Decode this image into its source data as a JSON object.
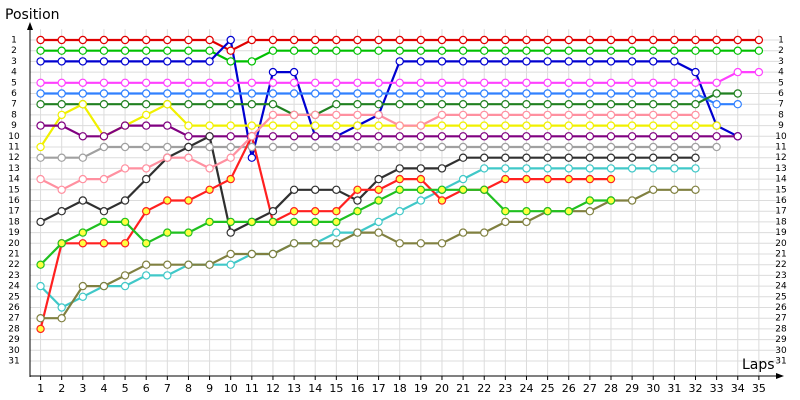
{
  "chart_data": {
    "type": "line",
    "y_label": "Position",
    "x_label": "Laps",
    "x": [
      1,
      2,
      3,
      4,
      5,
      6,
      7,
      8,
      9,
      10,
      11,
      12,
      13,
      14,
      15,
      16,
      17,
      18,
      19,
      20,
      21,
      22,
      23,
      24,
      25,
      26,
      27,
      28,
      29,
      30,
      31,
      32,
      33,
      34,
      35
    ],
    "xlim": [
      0.5,
      36
    ],
    "xticks": [
      1,
      2,
      3,
      4,
      5,
      6,
      7,
      8,
      9,
      10,
      11,
      12,
      13,
      14,
      15,
      16,
      17,
      18,
      19,
      20,
      21,
      22,
      23,
      24,
      25,
      26,
      27,
      28,
      29,
      30,
      31,
      32,
      33,
      34,
      35
    ],
    "ylim": [
      0,
      32
    ],
    "yticks": [
      1,
      2,
      3,
      4,
      5,
      6,
      7,
      8,
      9,
      10,
      11,
      12,
      13,
      14,
      15,
      16,
      17,
      18,
      19,
      20,
      21,
      22,
      23,
      24,
      25,
      26,
      27,
      28,
      29,
      30,
      31
    ],
    "inverted_y": true,
    "grid": true,
    "series": [
      {
        "color": "#e00000",
        "marker_fill": "#ffffff",
        "values": [
          1,
          1,
          1,
          1,
          1,
          1,
          1,
          1,
          1,
          2,
          1,
          1,
          1,
          1,
          1,
          1,
          1,
          1,
          1,
          1,
          1,
          1,
          1,
          1,
          1,
          1,
          1,
          1,
          1,
          1,
          1,
          1,
          1,
          1,
          1
        ]
      },
      {
        "color": "#00c000",
        "marker_fill": "#ffffff",
        "values": [
          2,
          2,
          2,
          2,
          2,
          2,
          2,
          2,
          2,
          3,
          3,
          2,
          2,
          2,
          2,
          2,
          2,
          2,
          2,
          2,
          2,
          2,
          2,
          2,
          2,
          2,
          2,
          2,
          2,
          2,
          2,
          2,
          2,
          2,
          2
        ]
      },
      {
        "color": "#0000d0",
        "marker_fill": "#ffffff",
        "values": [
          3,
          3,
          3,
          3,
          3,
          3,
          3,
          3,
          3,
          1,
          12,
          4,
          4,
          10,
          10,
          9,
          8,
          3,
          3,
          3,
          3,
          3,
          3,
          3,
          3,
          3,
          3,
          3,
          3,
          3,
          3,
          4,
          9,
          10,
          null
        ]
      },
      {
        "color": "#3080ff",
        "marker_fill": "#ffffff",
        "values": [
          6,
          6,
          6,
          6,
          6,
          6,
          6,
          6,
          6,
          6,
          6,
          6,
          6,
          6,
          6,
          6,
          6,
          6,
          6,
          6,
          6,
          6,
          6,
          6,
          6,
          6,
          6,
          6,
          6,
          6,
          6,
          6,
          7,
          7,
          null
        ]
      },
      {
        "color": "#ff40ff",
        "marker_fill": "#ffffff",
        "values": [
          5,
          5,
          5,
          5,
          5,
          5,
          5,
          5,
          5,
          5,
          5,
          5,
          5,
          5,
          5,
          5,
          5,
          5,
          5,
          5,
          5,
          5,
          5,
          5,
          5,
          5,
          5,
          5,
          5,
          5,
          5,
          5,
          5,
          4,
          4
        ]
      },
      {
        "color": "#208020",
        "marker_fill": "#ffffff",
        "values": [
          7,
          7,
          7,
          7,
          7,
          7,
          7,
          7,
          7,
          7,
          7,
          7,
          8,
          8,
          7,
          7,
          7,
          7,
          7,
          7,
          7,
          7,
          7,
          7,
          7,
          7,
          7,
          7,
          7,
          7,
          7,
          7,
          6,
          6,
          null
        ]
      },
      {
        "color": "#f0f000",
        "marker_fill": "#ffffff",
        "values": [
          11,
          8,
          7,
          10,
          9,
          8,
          7,
          9,
          9,
          9,
          9,
          9,
          9,
          9,
          9,
          9,
          9,
          9,
          9,
          9,
          9,
          9,
          9,
          9,
          9,
          9,
          9,
          9,
          9,
          9,
          9,
          9,
          9,
          null,
          null
        ]
      },
      {
        "color": "#800080",
        "marker_fill": "#ffffff",
        "values": [
          9,
          9,
          10,
          10,
          9,
          9,
          9,
          10,
          10,
          10,
          10,
          10,
          10,
          10,
          10,
          10,
          10,
          10,
          10,
          10,
          10,
          10,
          10,
          10,
          10,
          10,
          10,
          10,
          10,
          10,
          10,
          10,
          10,
          10,
          null
        ]
      },
      {
        "color": "#a0a0a0",
        "marker_fill": "#ffffff",
        "values": [
          12,
          12,
          12,
          11,
          11,
          11,
          11,
          11,
          11,
          11,
          11,
          11,
          11,
          11,
          11,
          11,
          11,
          11,
          11,
          11,
          11,
          11,
          11,
          11,
          11,
          11,
          11,
          11,
          11,
          11,
          11,
          11,
          11,
          null,
          null
        ]
      },
      {
        "color": "#303030",
        "marker_fill": "#ffffff",
        "values": [
          18,
          17,
          16,
          17,
          16,
          14,
          12,
          11,
          10,
          19,
          18,
          17,
          15,
          15,
          15,
          16,
          14,
          13,
          13,
          13,
          12,
          12,
          12,
          12,
          12,
          12,
          12,
          12,
          12,
          12,
          12,
          12,
          null,
          null,
          null
        ]
      },
      {
        "color": "#40c8c8",
        "marker_fill": "#ffffff",
        "values": [
          24,
          26,
          25,
          24,
          24,
          23,
          23,
          22,
          22,
          22,
          21,
          21,
          20,
          20,
          19,
          19,
          18,
          17,
          16,
          15,
          14,
          13,
          13,
          13,
          13,
          13,
          13,
          13,
          13,
          13,
          13,
          13,
          null,
          null,
          null
        ]
      },
      {
        "color": "#808040",
        "marker_fill": "#ffffff",
        "values": [
          27,
          27,
          24,
          24,
          23,
          22,
          22,
          22,
          22,
          21,
          21,
          21,
          20,
          20,
          20,
          19,
          19,
          20,
          20,
          20,
          19,
          19,
          18,
          18,
          17,
          17,
          17,
          16,
          16,
          15,
          15,
          15,
          null,
          null,
          null
        ]
      },
      {
        "color": "#ff2020",
        "marker_fill": "#ffff40",
        "values": [
          28,
          20,
          20,
          20,
          20,
          17,
          16,
          16,
          15,
          14,
          10,
          18,
          17,
          17,
          17,
          15,
          15,
          14,
          14,
          16,
          15,
          15,
          14,
          14,
          14,
          14,
          14,
          14,
          null,
          null,
          null,
          null,
          null,
          null,
          null
        ]
      },
      {
        "color": "#20c020",
        "marker_fill": "#ffff40",
        "values": [
          22,
          20,
          19,
          18,
          18,
          20,
          19,
          19,
          18,
          18,
          18,
          18,
          18,
          18,
          18,
          17,
          16,
          15,
          15,
          15,
          15,
          15,
          17,
          17,
          17,
          17,
          16,
          16,
          null,
          null,
          null,
          null,
          null,
          null,
          null
        ]
      },
      {
        "color": "#ff90a0",
        "marker_fill": "#ffffff",
        "values": [
          14,
          15,
          14,
          14,
          13,
          13,
          12,
          12,
          13,
          12,
          10,
          8,
          8,
          8,
          8,
          8,
          8,
          9,
          9,
          8,
          8,
          8,
          8,
          8,
          8,
          8,
          8,
          8,
          8,
          8,
          8,
          8,
          null,
          null,
          null
        ]
      }
    ]
  }
}
